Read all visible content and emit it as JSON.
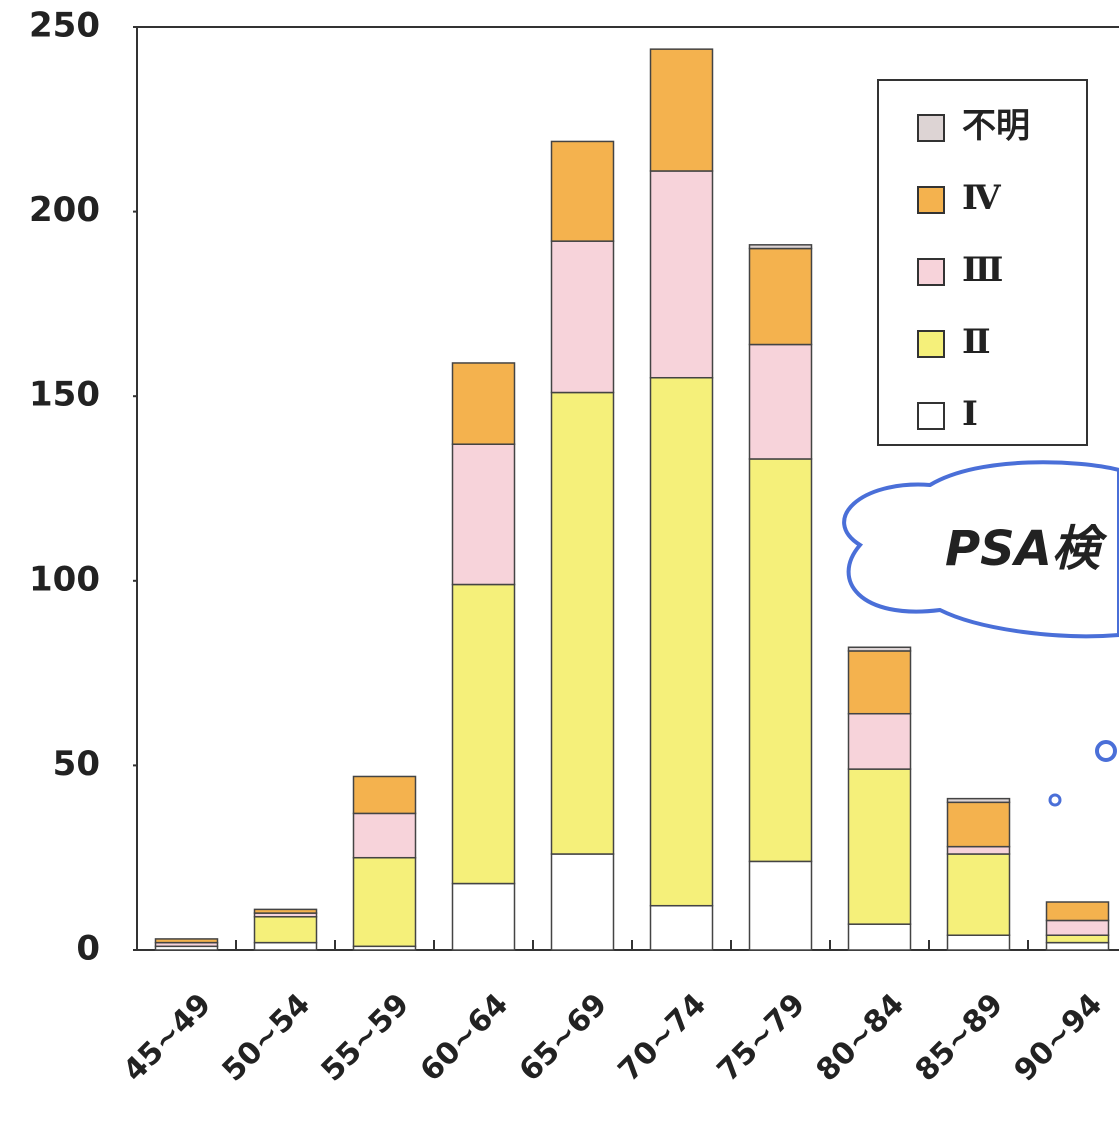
{
  "chart_data": {
    "type": "bar",
    "stacked": true,
    "categories": [
      "45~49",
      "50~54",
      "55~59",
      "60~64",
      "65~69",
      "70~74",
      "75~79",
      "80~84",
      "85~89",
      "90~94"
    ],
    "series": [
      {
        "name": "Ⅰ",
        "color": "#ffffff",
        "values": [
          1,
          2,
          1,
          18,
          26,
          12,
          24,
          7,
          4,
          2
        ]
      },
      {
        "name": "Ⅱ",
        "color": "#f5f07a",
        "values": [
          0,
          7,
          24,
          81,
          125,
          143,
          109,
          42,
          22,
          2
        ]
      },
      {
        "name": "Ⅲ",
        "color": "#f7d3da",
        "values": [
          1,
          1,
          12,
          38,
          41,
          56,
          31,
          15,
          2,
          4
        ]
      },
      {
        "name": "Ⅳ",
        "color": "#f4b24e",
        "values": [
          1,
          1,
          10,
          22,
          27,
          33,
          26,
          17,
          12,
          5
        ]
      },
      {
        "name": "不明",
        "color": "#ddd4d4",
        "values": [
          0,
          0,
          0,
          0,
          0,
          0,
          1,
          1,
          1,
          0
        ]
      }
    ],
    "ylim": [
      0,
      250
    ],
    "yticks": [
      0,
      50,
      100,
      150,
      200,
      250
    ],
    "annotation": "PSA検"
  }
}
